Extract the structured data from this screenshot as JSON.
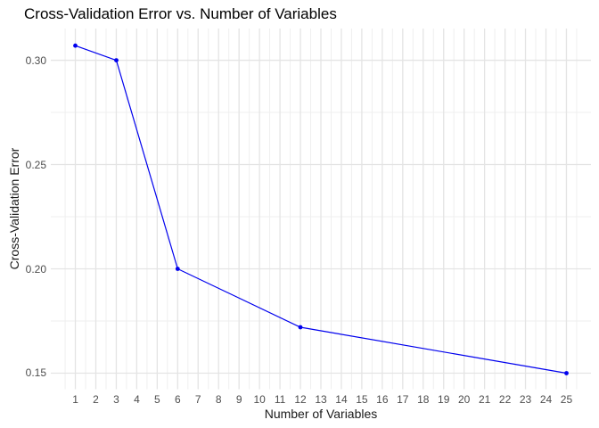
{
  "figure": {
    "background": "#ffffff"
  },
  "chart_data": {
    "type": "line",
    "title": "Cross-Validation Error vs. Number of Variables",
    "xlabel": "Number of Variables",
    "ylabel": "Cross-Validation Error",
    "x": [
      1,
      3,
      6,
      12,
      25
    ],
    "y": [
      0.307,
      0.3,
      0.2,
      0.172,
      0.15
    ],
    "x_ticks": [
      1,
      2,
      3,
      4,
      5,
      6,
      7,
      8,
      9,
      10,
      11,
      12,
      13,
      14,
      15,
      16,
      17,
      18,
      19,
      20,
      21,
      22,
      23,
      24,
      25
    ],
    "y_ticks": [
      0.3,
      0.25,
      0.2,
      0.15
    ],
    "y_tick_labels": [
      "0.30",
      "0.25",
      "0.20",
      "0.15"
    ],
    "xlim": [
      -0.2,
      26.2
    ],
    "ylim": [
      0.1423,
      0.3152
    ],
    "grid": true,
    "legend": "none",
    "line_color": "#0000EE",
    "point_color": "#0000EE",
    "grid_major_color": "#E4E4E4",
    "grid_minor_color": "#EFEFEF",
    "tick_label_color": "#4d4d4d",
    "title_color": "#000000",
    "axis_title_color": "#1a1a1a"
  }
}
